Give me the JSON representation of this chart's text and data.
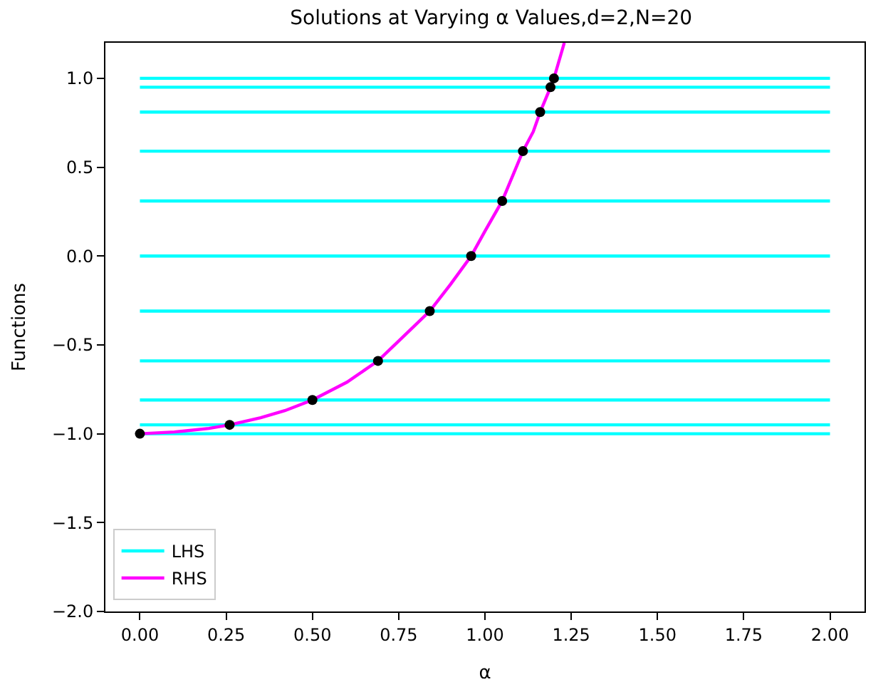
{
  "chart_data": {
    "type": "line",
    "title": "Solutions at Varying α Values,d=2,N=20",
    "xlabel": "α",
    "ylabel": "Functions",
    "xlim": [
      -0.1,
      2.1
    ],
    "ylim": [
      -2.0,
      1.2
    ],
    "xticks": [
      {
        "value": 0,
        "label": "0.00"
      },
      {
        "value": 0.25,
        "label": "0.25"
      },
      {
        "value": 0.5,
        "label": "0.50"
      },
      {
        "value": 0.75,
        "label": "0.75"
      },
      {
        "value": 1,
        "label": "1.00"
      },
      {
        "value": 1.25,
        "label": "1.25"
      },
      {
        "value": 1.5,
        "label": "1.50"
      },
      {
        "value": 1.75,
        "label": "1.75"
      },
      {
        "value": 2,
        "label": "2.00"
      }
    ],
    "yticks": [
      {
        "value": -2,
        "label": "−2.0"
      },
      {
        "value": -1.5,
        "label": "−1.5"
      },
      {
        "value": -1,
        "label": "−1.0"
      },
      {
        "value": -0.5,
        "label": "−0.5"
      },
      {
        "value": 0,
        "label": "0.0"
      },
      {
        "value": 0.5,
        "label": "0.5"
      },
      {
        "value": 1,
        "label": "1.0"
      }
    ],
    "legend": "bottom left",
    "series": [
      {
        "name": "LHS",
        "color": "#00ffff",
        "x": [
          0,
          2
        ],
        "values": [
          1,
          1
        ]
      },
      {
        "color": "#00ffff",
        "x": [
          0,
          2
        ],
        "values": [
          0.95,
          0.95
        ]
      },
      {
        "color": "#00ffff",
        "x": [
          0,
          2
        ],
        "values": [
          0.81,
          0.81
        ]
      },
      {
        "color": "#00ffff",
        "x": [
          0,
          2
        ],
        "values": [
          0.59,
          0.59
        ]
      },
      {
        "color": "#00ffff",
        "x": [
          0,
          2
        ],
        "values": [
          0.31,
          0.31
        ]
      },
      {
        "color": "#00ffff",
        "x": [
          0,
          2
        ],
        "values": [
          0,
          0
        ]
      },
      {
        "color": "#00ffff",
        "x": [
          0,
          2
        ],
        "values": [
          -0.31,
          -0.31
        ]
      },
      {
        "color": "#00ffff",
        "x": [
          0,
          2
        ],
        "values": [
          -0.59,
          -0.59
        ]
      },
      {
        "color": "#00ffff",
        "x": [
          0,
          2
        ],
        "values": [
          -0.81,
          -0.81
        ]
      },
      {
        "color": "#00ffff",
        "x": [
          0,
          2
        ],
        "values": [
          -0.95,
          -0.95
        ]
      },
      {
        "color": "#00ffff",
        "x": [
          0,
          2
        ],
        "values": [
          -1,
          -1
        ]
      },
      {
        "name": "RHS",
        "color": "#ff00ff",
        "x": [
          0,
          0.1,
          0.2,
          0.26,
          0.35,
          0.42,
          0.5,
          0.6,
          0.69,
          0.76,
          0.84,
          0.9,
          0.96,
          1.0,
          1.05,
          1.08,
          1.11,
          1.14,
          1.16,
          1.19,
          1.2,
          1.23
        ],
        "values": [
          -1,
          -0.99,
          -0.97,
          -0.95,
          -0.91,
          -0.87,
          -0.81,
          -0.71,
          -0.59,
          -0.46,
          -0.31,
          -0.16,
          0,
          0.14,
          0.31,
          0.45,
          0.59,
          0.7,
          0.81,
          0.95,
          1.0,
          1.2
        ]
      },
      {
        "color": "#000000",
        "type": "scatter",
        "marker": "circle",
        "x": [
          0,
          0.26,
          0.5,
          0.69,
          0.84,
          0.96,
          1.05,
          1.11,
          1.16,
          1.19,
          1.2
        ],
        "values": [
          -1,
          -0.95,
          -0.81,
          -0.59,
          -0.31,
          0,
          0.31,
          0.59,
          0.81,
          0.95,
          1.0
        ]
      }
    ]
  }
}
